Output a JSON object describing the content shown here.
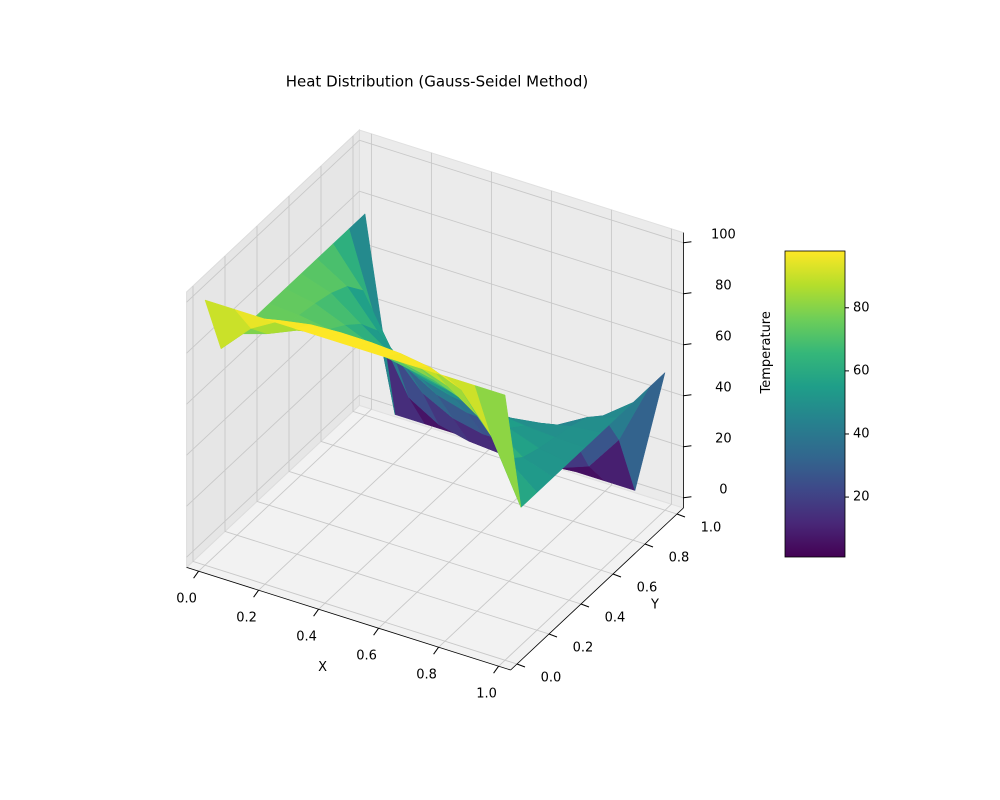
{
  "chart_data": {
    "type": "surface",
    "title": "Heat Distribution (Gauss-Seidel Method)",
    "xlabel": "X",
    "ylabel": "Y",
    "zlabel": "Temperature",
    "x": [
      0,
      0.1,
      0.2,
      0.3,
      0.4,
      0.5,
      0.6,
      0.7,
      0.8,
      0.9,
      1
    ],
    "y": [
      0,
      0.1,
      0.2,
      0.3,
      0.4,
      0.5,
      0.6,
      0.7,
      0.8,
      0.9,
      1
    ],
    "z": [
      [
        100,
        100,
        100,
        100,
        100,
        100,
        100,
        100,
        100,
        100,
        100
      ],
      [
        75,
        86.7,
        93.5,
        95.6,
        96.2,
        96.1,
        95.4,
        93.6,
        88.9,
        74.5,
        50
      ],
      [
        75,
        78.7,
        83.8,
        86.5,
        87.3,
        86.8,
        84.9,
        80.8,
        72.8,
        59.4,
        50
      ],
      [
        75,
        75.8,
        77.2,
        77.8,
        77.5,
        76.2,
        73.6,
        69.2,
        62.4,
        54.2,
        50
      ],
      [
        75,
        74.2,
        72.4,
        70.3,
        68.3,
        66.1,
        63.5,
        60.1,
        56,
        51.9,
        50
      ],
      [
        75,
        72.9,
        68.1,
        63.1,
        59.2,
        56.3,
        54.1,
        52.4,
        51.1,
        50.3,
        50
      ],
      [
        75,
        71.1,
        62.7,
        54.7,
        49,
        45.7,
        44.2,
        44.5,
        46.2,
        48.7,
        50
      ],
      [
        75,
        67.9,
        54.3,
        43.3,
        36.6,
        33.3,
        32.7,
        34.7,
        39.6,
        46.3,
        50
      ],
      [
        75,
        60.4,
        39.7,
        27.5,
        21.5,
        19,
        19,
        21.8,
        28.7,
        41.1,
        50
      ],
      [
        75,
        38,
        16.2,
        9.3,
        6.6,
        5.7,
        5.8,
        7.3,
        11.7,
        25.8,
        50
      ],
      [
        75,
        0,
        0,
        0,
        0,
        0,
        0,
        0,
        0,
        0,
        50
      ]
    ],
    "xlim": [
      0,
      1
    ],
    "ylim": [
      0,
      1
    ],
    "zlim": [
      0,
      100
    ],
    "xticks": [
      {
        "value": 0,
        "label": "0.0"
      },
      0.2,
      0.4,
      0.6,
      0.8,
      {
        "value": 1,
        "label": "1.0"
      }
    ],
    "yticks": [
      {
        "value": 0,
        "label": "0.0"
      },
      0.2,
      0.4,
      0.6,
      0.8,
      {
        "value": 1,
        "label": "1.0"
      }
    ],
    "zticks": [
      0,
      20,
      40,
      60,
      80,
      100
    ],
    "grid": true,
    "colormap": [
      "#440154",
      "#482878",
      "#3e4989",
      "#31688e",
      "#26828e",
      "#1f9e89",
      "#35b779",
      "#6ece58",
      "#b5de2b",
      "#fde725"
    ],
    "colorbar": {
      "clim": [
        1,
        98
      ],
      "ticks": [
        20,
        40,
        60,
        80
      ]
    }
  }
}
